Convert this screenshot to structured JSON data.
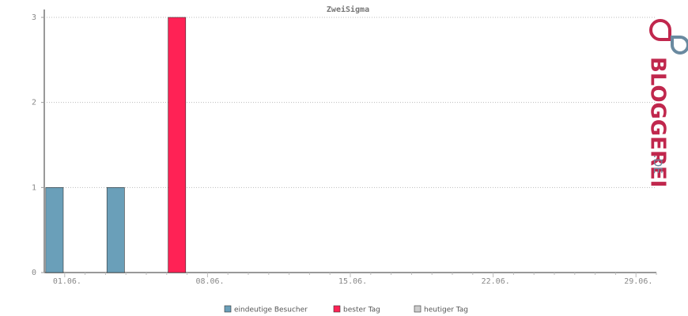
{
  "chart_data": {
    "type": "bar",
    "title": "ZweiSigma",
    "categories": [
      "01.06.",
      null,
      null,
      null,
      null,
      null,
      null,
      "08.06.",
      null,
      null,
      null,
      null,
      null,
      null,
      "15.06.",
      null,
      null,
      null,
      null,
      null,
      null,
      "22.06.",
      null,
      null,
      null,
      null,
      null,
      null,
      "29.06.",
      null
    ],
    "series": [
      {
        "name": "eindeutige Besucher",
        "color": "#6a9fb9",
        "values": [
          1,
          0,
          0,
          1,
          0,
          0,
          null,
          0,
          0,
          0,
          0,
          0,
          0,
          0,
          0,
          0,
          0,
          0,
          0,
          0,
          0,
          0,
          0,
          0,
          0,
          0,
          0,
          0,
          0,
          0
        ]
      },
      {
        "name": "bester Tag",
        "color": "#ff2255",
        "values": [
          null,
          null,
          null,
          null,
          null,
          null,
          3,
          null,
          null,
          null,
          null,
          null,
          null,
          null,
          null,
          null,
          null,
          null,
          null,
          null,
          null,
          null,
          null,
          null,
          null,
          null,
          null,
          null,
          null,
          null
        ]
      },
      {
        "name": "heutiger Tag",
        "color": "#cccccc",
        "values": [
          null,
          null,
          null,
          null,
          null,
          null,
          null,
          null,
          null,
          null,
          null,
          null,
          null,
          null,
          null,
          null,
          null,
          null,
          null,
          null,
          null,
          null,
          null,
          null,
          null,
          null,
          null,
          null,
          null,
          null
        ]
      }
    ],
    "ylim": [
      0,
      3
    ],
    "yticks": [
      0,
      1,
      2,
      3
    ],
    "grid": true
  },
  "logo": {
    "text": "BLOGGEREI",
    "suffix": ".DE"
  }
}
